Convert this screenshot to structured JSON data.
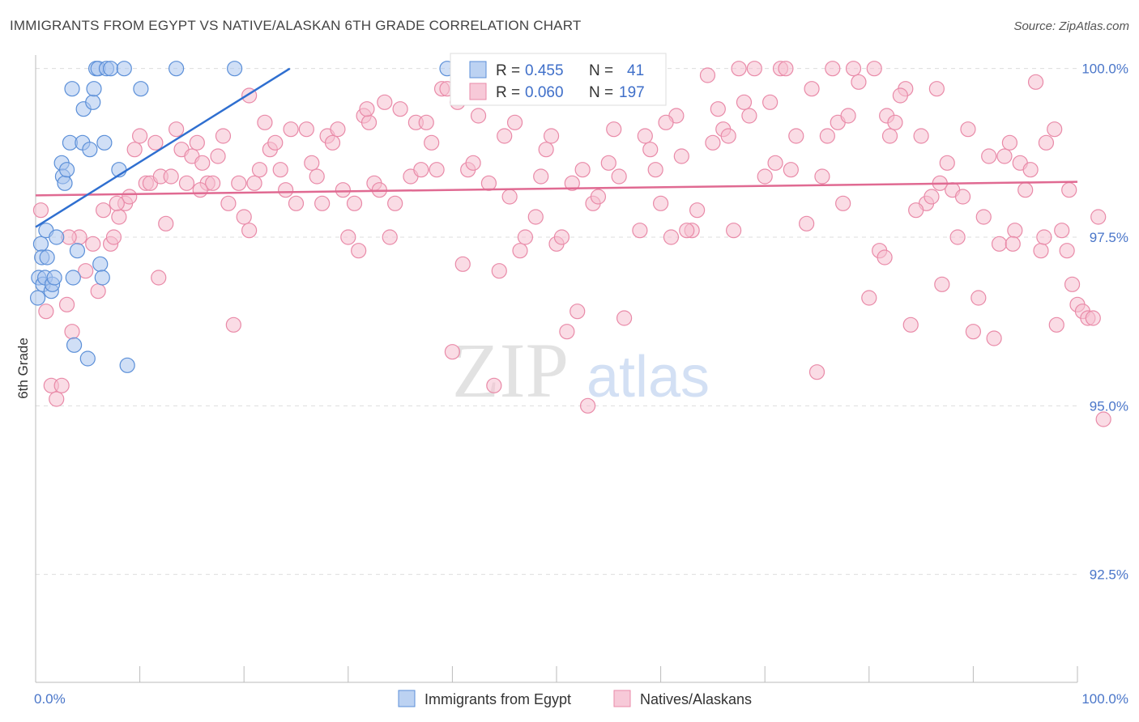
{
  "header": {
    "title": "IMMIGRANTS FROM EGYPT VS NATIVE/ALASKAN 6TH GRADE CORRELATION CHART",
    "source": "Source: ZipAtlas.com"
  },
  "watermark": {
    "zip": "ZIP",
    "atlas": "atlas"
  },
  "colors": {
    "blue_fill": "#a9c4ee",
    "blue_stroke": "#5b8fd8",
    "blue_line": "#2f6fd0",
    "pink_fill": "#f6bfd0",
    "pink_stroke": "#e98aa8",
    "pink_line": "#e06a92",
    "tick_text": "#4a76c9",
    "grid": "#dddddd"
  },
  "legend": {
    "rows": [
      {
        "r_label": "R = ",
        "r_value": "0.455",
        "n_label": "N = ",
        "n_value": "41",
        "series": "blue"
      },
      {
        "r_label": "R = ",
        "r_value": "0.060",
        "n_label": "N = ",
        "n_value": "197",
        "series": "pink"
      }
    ]
  },
  "chart_data": {
    "type": "scatter",
    "title": "IMMIGRANTS FROM EGYPT VS NATIVE/ALASKAN 6TH GRADE CORRELATION CHART",
    "xlabel": "",
    "ylabel": "6th Grade",
    "xlim": [
      0,
      100
    ],
    "ylim": [
      90.9,
      100.2
    ],
    "x_tick_labels": [
      "0.0%",
      "100.0%"
    ],
    "y_ticks": [
      100.0,
      97.5,
      95.0,
      92.5
    ],
    "y_tick_labels": [
      "100.0%",
      "97.5%",
      "95.0%",
      "92.5%"
    ],
    "series": [
      {
        "name": "Immigrants from Egypt",
        "color": "blue",
        "R": 0.455,
        "N": 41,
        "trend": {
          "x": [
            0,
            24.4
          ],
          "y": [
            97.65,
            100.0
          ]
        },
        "points": [
          [
            0.2,
            96.6
          ],
          [
            0.3,
            96.9
          ],
          [
            0.5,
            97.4
          ],
          [
            0.6,
            97.2
          ],
          [
            0.7,
            96.8
          ],
          [
            0.9,
            96.9
          ],
          [
            1.0,
            97.6
          ],
          [
            1.1,
            97.2
          ],
          [
            1.5,
            96.7
          ],
          [
            1.6,
            96.8
          ],
          [
            1.8,
            96.9
          ],
          [
            2.0,
            97.5
          ],
          [
            2.5,
            98.6
          ],
          [
            2.6,
            98.4
          ],
          [
            2.8,
            98.3
          ],
          [
            3.0,
            98.5
          ],
          [
            3.3,
            98.9
          ],
          [
            3.5,
            99.7
          ],
          [
            3.6,
            96.9
          ],
          [
            3.7,
            95.9
          ],
          [
            4.0,
            97.3
          ],
          [
            4.5,
            98.9
          ],
          [
            4.6,
            99.4
          ],
          [
            5.0,
            95.7
          ],
          [
            5.2,
            98.8
          ],
          [
            5.5,
            99.5
          ],
          [
            5.6,
            99.7
          ],
          [
            5.8,
            100.0
          ],
          [
            6.0,
            100.0
          ],
          [
            6.2,
            97.1
          ],
          [
            6.4,
            96.9
          ],
          [
            6.6,
            98.9
          ],
          [
            6.8,
            100.0
          ],
          [
            7.2,
            100.0
          ],
          [
            8.0,
            98.5
          ],
          [
            8.5,
            100.0
          ],
          [
            8.8,
            95.6
          ],
          [
            10.1,
            99.7
          ],
          [
            13.5,
            100.0
          ],
          [
            19.1,
            100.0
          ],
          [
            39.5,
            100.0
          ]
        ]
      },
      {
        "name": "Natives/Alaskans",
        "color": "pink",
        "R": 0.06,
        "N": 197,
        "trend": {
          "x": [
            0,
            100
          ],
          "y": [
            98.12,
            98.32
          ]
        },
        "points": [
          [
            0.5,
            97.9
          ],
          [
            1.0,
            96.4
          ],
          [
            1.5,
            95.3
          ],
          [
            2.0,
            95.1
          ],
          [
            2.5,
            95.3
          ],
          [
            3.0,
            96.5
          ],
          [
            3.5,
            96.1
          ],
          [
            4.2,
            97.5
          ],
          [
            4.8,
            97.0
          ],
          [
            5.5,
            97.4
          ],
          [
            6.0,
            96.7
          ],
          [
            6.5,
            97.9
          ],
          [
            7.2,
            97.4
          ],
          [
            7.5,
            97.5
          ],
          [
            8.0,
            97.8
          ],
          [
            8.6,
            98.0
          ],
          [
            9.0,
            98.1
          ],
          [
            9.5,
            98.8
          ],
          [
            10.0,
            99.0
          ],
          [
            10.6,
            98.3
          ],
          [
            11.0,
            98.3
          ],
          [
            11.5,
            98.9
          ],
          [
            12.0,
            98.4
          ],
          [
            12.5,
            97.7
          ],
          [
            13.0,
            98.4
          ],
          [
            13.5,
            99.1
          ],
          [
            14.0,
            98.8
          ],
          [
            14.5,
            98.3
          ],
          [
            15.0,
            98.7
          ],
          [
            15.5,
            98.9
          ],
          [
            16.0,
            98.6
          ],
          [
            16.5,
            98.3
          ],
          [
            17.0,
            98.3
          ],
          [
            17.5,
            98.7
          ],
          [
            18.0,
            99.0
          ],
          [
            18.5,
            98.0
          ],
          [
            19.0,
            96.2
          ],
          [
            19.5,
            98.3
          ],
          [
            20.0,
            97.8
          ],
          [
            20.5,
            97.6
          ],
          [
            21.0,
            98.3
          ],
          [
            21.5,
            98.5
          ],
          [
            22.0,
            99.2
          ],
          [
            22.5,
            98.8
          ],
          [
            23.0,
            98.9
          ],
          [
            23.5,
            98.5
          ],
          [
            24.0,
            98.2
          ],
          [
            25.0,
            98.0
          ],
          [
            26.0,
            99.1
          ],
          [
            26.5,
            98.6
          ],
          [
            27.5,
            98.0
          ],
          [
            28.0,
            99.0
          ],
          [
            28.5,
            98.9
          ],
          [
            29.0,
            99.1
          ],
          [
            29.5,
            98.2
          ],
          [
            30.0,
            97.5
          ],
          [
            30.6,
            98.0
          ],
          [
            31.0,
            97.3
          ],
          [
            31.5,
            99.3
          ],
          [
            32.0,
            99.2
          ],
          [
            32.5,
            98.3
          ],
          [
            33.0,
            98.2
          ],
          [
            33.5,
            99.5
          ],
          [
            34.0,
            97.5
          ],
          [
            34.5,
            98.0
          ],
          [
            35.0,
            99.4
          ],
          [
            36.0,
            98.4
          ],
          [
            36.5,
            99.2
          ],
          [
            37.0,
            98.5
          ],
          [
            37.5,
            99.2
          ],
          [
            38.0,
            98.9
          ],
          [
            39.0,
            99.7
          ],
          [
            39.5,
            99.7
          ],
          [
            40.0,
            95.8
          ],
          [
            40.5,
            99.5
          ],
          [
            41.0,
            97.1
          ],
          [
            41.5,
            98.5
          ],
          [
            42.0,
            98.6
          ],
          [
            42.5,
            99.3
          ],
          [
            43.0,
            99.7
          ],
          [
            44.0,
            95.3
          ],
          [
            44.5,
            97.0
          ],
          [
            45.0,
            99.0
          ],
          [
            45.5,
            98.1
          ],
          [
            46.0,
            99.2
          ],
          [
            46.5,
            97.3
          ],
          [
            47.0,
            97.5
          ],
          [
            48.0,
            97.8
          ],
          [
            48.5,
            98.4
          ],
          [
            49.0,
            98.8
          ],
          [
            49.5,
            99.0
          ],
          [
            50.0,
            97.4
          ],
          [
            50.5,
            97.5
          ],
          [
            51.0,
            96.1
          ],
          [
            52.0,
            96.4
          ],
          [
            52.5,
            98.5
          ],
          [
            53.0,
            95.0
          ],
          [
            53.5,
            98.0
          ],
          [
            54.0,
            98.1
          ],
          [
            55.0,
            98.6
          ],
          [
            56.0,
            98.4
          ],
          [
            56.5,
            96.3
          ],
          [
            57.0,
            99.7
          ],
          [
            58.0,
            97.6
          ],
          [
            58.5,
            99.0
          ],
          [
            59.0,
            98.8
          ],
          [
            59.5,
            98.5
          ],
          [
            60.0,
            98.0
          ],
          [
            61.0,
            97.5
          ],
          [
            61.5,
            99.3
          ],
          [
            62.0,
            98.7
          ],
          [
            63.0,
            97.6
          ],
          [
            63.5,
            97.9
          ],
          [
            64.5,
            99.9
          ],
          [
            65.5,
            99.4
          ],
          [
            66.0,
            99.1
          ],
          [
            66.5,
            99.0
          ],
          [
            67.0,
            97.6
          ],
          [
            67.5,
            100.0
          ],
          [
            68.5,
            99.3
          ],
          [
            69.0,
            100.0
          ],
          [
            70.0,
            98.4
          ],
          [
            70.5,
            99.5
          ],
          [
            71.0,
            98.6
          ],
          [
            71.5,
            100.0
          ],
          [
            72.0,
            100.0
          ],
          [
            73.0,
            99.0
          ],
          [
            74.0,
            97.7
          ],
          [
            74.5,
            99.7
          ],
          [
            75.0,
            95.5
          ],
          [
            76.0,
            99.0
          ],
          [
            76.5,
            100.0
          ],
          [
            77.0,
            99.2
          ],
          [
            77.5,
            98.0
          ],
          [
            78.5,
            100.0
          ],
          [
            79.0,
            99.8
          ],
          [
            80.0,
            96.6
          ],
          [
            81.0,
            97.3
          ],
          [
            81.5,
            97.2
          ],
          [
            81.7,
            99.3
          ],
          [
            82.0,
            99.0
          ],
          [
            82.5,
            99.2
          ],
          [
            83.5,
            99.7
          ],
          [
            84.0,
            96.2
          ],
          [
            85.0,
            99.0
          ],
          [
            85.5,
            98.0
          ],
          [
            86.0,
            98.1
          ],
          [
            86.5,
            99.7
          ],
          [
            87.0,
            96.8
          ],
          [
            87.5,
            98.6
          ],
          [
            88.0,
            98.2
          ],
          [
            88.5,
            97.5
          ],
          [
            89.0,
            98.1
          ],
          [
            90.0,
            96.1
          ],
          [
            90.5,
            96.6
          ],
          [
            91.0,
            97.8
          ],
          [
            92.0,
            96.0
          ],
          [
            92.5,
            97.4
          ],
          [
            93.0,
            98.7
          ],
          [
            93.5,
            98.9
          ],
          [
            94.0,
            97.6
          ],
          [
            94.5,
            98.6
          ],
          [
            95.0,
            98.2
          ],
          [
            95.5,
            98.5
          ],
          [
            96.0,
            99.8
          ],
          [
            96.5,
            97.3
          ],
          [
            97.0,
            98.9
          ],
          [
            97.8,
            99.1
          ],
          [
            98.0,
            96.2
          ],
          [
            98.5,
            97.6
          ],
          [
            99.0,
            97.3
          ],
          [
            99.5,
            96.8
          ],
          [
            100.0,
            96.5
          ],
          [
            100.5,
            96.4
          ],
          [
            101.0,
            96.3
          ],
          [
            101.5,
            96.3
          ],
          [
            102.0,
            97.8
          ],
          [
            102.5,
            94.8
          ],
          [
            20.5,
            99.6
          ],
          [
            24.5,
            99.1
          ],
          [
            27.0,
            98.4
          ],
          [
            31.8,
            99.4
          ],
          [
            38.5,
            98.5
          ],
          [
            43.5,
            98.3
          ],
          [
            47.5,
            99.9
          ],
          [
            51.5,
            98.3
          ],
          [
            55.5,
            99.1
          ],
          [
            60.5,
            99.2
          ],
          [
            62.5,
            97.6
          ],
          [
            65.0,
            98.9
          ],
          [
            68.0,
            99.5
          ],
          [
            72.5,
            98.5
          ],
          [
            75.5,
            98.4
          ],
          [
            78.0,
            99.3
          ],
          [
            80.5,
            100.0
          ],
          [
            83.0,
            99.6
          ],
          [
            84.5,
            97.9
          ],
          [
            86.8,
            98.3
          ],
          [
            89.5,
            99.1
          ],
          [
            91.5,
            98.7
          ],
          [
            93.8,
            97.4
          ],
          [
            96.8,
            97.5
          ],
          [
            99.2,
            98.2
          ],
          [
            3.2,
            97.5
          ],
          [
            7.8,
            98.0
          ],
          [
            11.8,
            96.9
          ],
          [
            15.8,
            98.2
          ]
        ]
      }
    ]
  },
  "bottom_legend": [
    {
      "label": "Immigrants from Egypt",
      "series": "blue"
    },
    {
      "label": "Natives/Alaskans",
      "series": "pink"
    }
  ]
}
